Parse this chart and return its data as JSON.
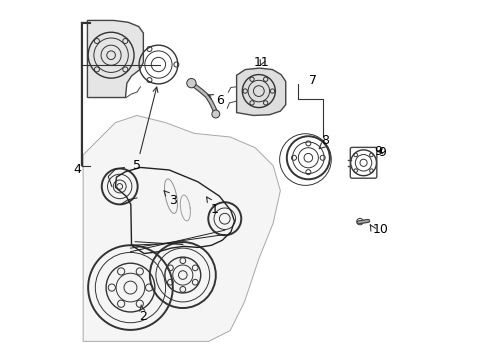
{
  "background_color": "#ffffff",
  "fig_width": 4.89,
  "fig_height": 3.6,
  "dpi": 100,
  "line_color": "#333333",
  "text_color": "#000000",
  "lw_thin": 0.7,
  "lw_med": 1.0,
  "lw_thick": 1.4
}
